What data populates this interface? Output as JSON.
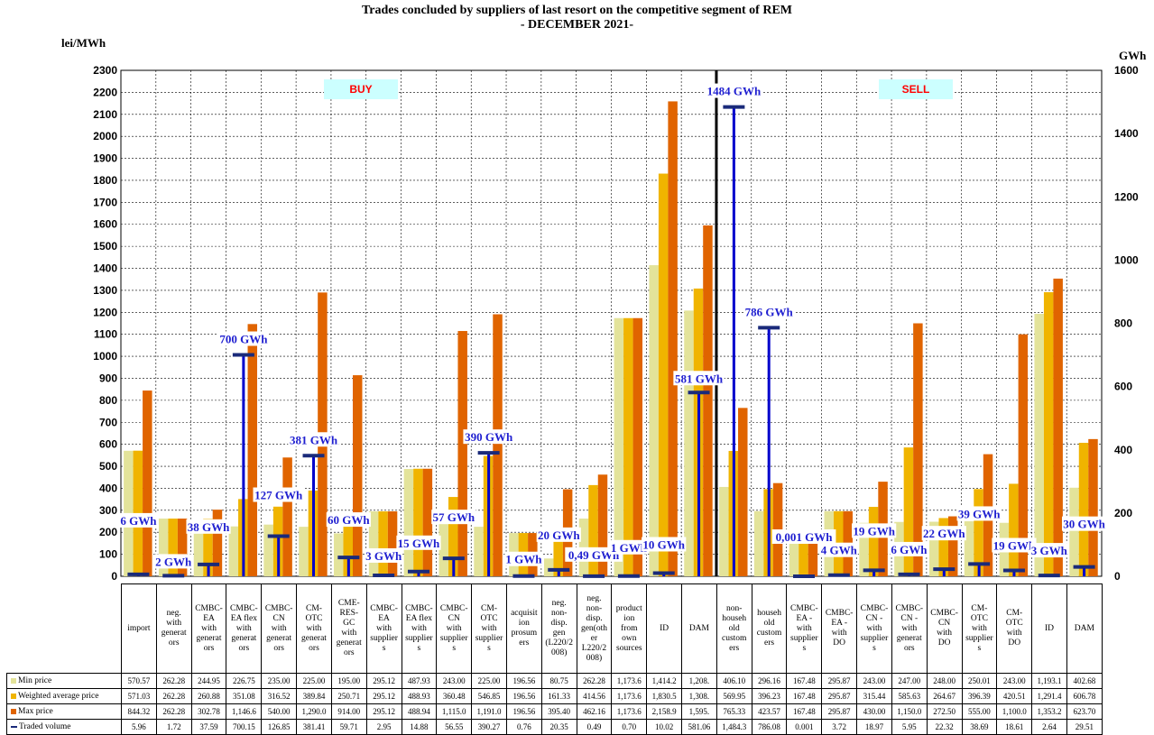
{
  "title_line1": "Trades concluded by suppliers of last resort on the competitive segment of REM",
  "title_line2": "- DECEMBER 2021-",
  "chart_data": {
    "type": "bar",
    "left_unit": "lei/MWh",
    "right_unit": "GWh",
    "ylim": [
      0,
      2300
    ],
    "y2lim": [
      0,
      1600
    ],
    "y_ticks": [
      "0",
      "100",
      "200",
      "300",
      "400",
      "500",
      "600",
      "700",
      "800",
      "900",
      "1000",
      "1100",
      "1200",
      "1300",
      "1400",
      "1500",
      "1600",
      "1700",
      "1800",
      "1900",
      "2000",
      "2100",
      "2200",
      "2300"
    ],
    "y2_ticks": [
      "0",
      "200",
      "400",
      "600",
      "800",
      "1000",
      "1200",
      "1400",
      "1600"
    ],
    "grid": true,
    "buy_label": "BUY",
    "sell_label": "SELL",
    "categories": [
      "import",
      "neg. with generators",
      "CMBC-EA with generators",
      "CMBC-EA flex with generators",
      "CMBC-CN with generators",
      "CM-OTC with generators",
      "CME-RES-GC with generators",
      "CMBC-EA with suppliers",
      "CMBC-EA flex with suppliers",
      "CMBC-CN with suppliers",
      "CM-OTC with suppliers",
      "acquisition prosumers",
      "neg. non-disp. gen (L220/2008)",
      "neg. non-disp. gen(other L220/2008)",
      "production from own sources",
      "ID",
      "DAM",
      "non-household customers",
      "household customers",
      "CMBC-EA - with suppliers",
      "CMBC-EA - with DO",
      "CMBC-CN - with suppliers",
      "CMBC-CN - with generators",
      "CMBC-CN with DO",
      "CM-OTC with suppliers",
      "CM-OTC with DO",
      "ID",
      "DAM"
    ],
    "category_labels": [
      "import",
      "neg.\nwith\ngenerat\nors",
      "CMBC-\nEA\nwith\ngenerat\nors",
      "CMBC-\nEA flex\nwith\ngenerat\nors",
      "CMBC-\nCN\nwith\ngenerat\nors",
      "CM-\nOTC\nwith\ngenerat\nors",
      "CME-\nRES-\nGC\nwith\ngenerat\nors",
      "CMBC-\nEA\nwith\nsupplier\ns",
      "CMBC-\nEA flex\nwith\nsupplier\ns",
      "CMBC-\nCN\nwith\nsupplier\ns",
      "CM-\nOTC\nwith\nsupplier\ns",
      "acquisit\nion\nprosum\ners",
      "neg.\nnon-\ndisp.\ngen\n(L220/2\n008)",
      "neg.\nnon-\ndisp.\ngen(oth\ner\nL220/2\n008)",
      "product\nion\nfrom\nown\nsources",
      "ID",
      "DAM",
      "non-\nhouseh\nold\ncustom\ners",
      "househ\nold\ncustom\ners",
      "CMBC-\nEA -\nwith\nsupplier\ns",
      "CMBC-\nEA -\nwith\nDO",
      "CMBC-\nCN -\nwith\nsupplier\ns",
      "CMBC-\nCN -\nwith\ngenerat\nors",
      "CMBC-\nCN\nwith\nDO",
      "CM-\nOTC\nwith\nsupplier\ns",
      "CM-\nOTC\nwith\nDO",
      "ID",
      "DAM"
    ],
    "series": [
      {
        "name": "Min price",
        "color": "#e3e39a",
        "values": [
          570.57,
          262.28,
          244.95,
          226.75,
          235.0,
          225.0,
          195.0,
          295.12,
          487.93,
          243.0,
          225.0,
          196.56,
          80.75,
          262.28,
          1173.6,
          1414.2,
          1208.0,
          406.1,
          296.16,
          167.48,
          295.87,
          243.0,
          247.0,
          248.0,
          250.01,
          243.0,
          1193.1,
          402.68
        ]
      },
      {
        "name": "Weighted average price",
        "color": "#f0b400",
        "values": [
          571.03,
          262.28,
          260.88,
          351.08,
          316.52,
          389.84,
          250.71,
          295.12,
          488.93,
          360.48,
          546.85,
          196.56,
          161.33,
          414.56,
          1173.6,
          1830.5,
          1308.0,
          569.95,
          396.23,
          167.48,
          295.87,
          315.44,
          585.63,
          264.67,
          396.39,
          420.51,
          1291.4,
          606.78
        ]
      },
      {
        "name": "Max price",
        "color": "#e06400",
        "values": [
          844.32,
          262.28,
          302.78,
          1146.6,
          540.0,
          1290.0,
          914.0,
          295.12,
          488.94,
          1115.0,
          1191.0,
          196.56,
          395.4,
          462.16,
          1173.6,
          2158.9,
          1595.0,
          765.33,
          423.57,
          167.48,
          295.87,
          430.0,
          1150.0,
          272.5,
          555.0,
          1100.0,
          1353.2,
          623.7
        ]
      },
      {
        "name": "Traded volume",
        "color": "#0000cc",
        "values": [
          5.96,
          1.72,
          37.59,
          700.15,
          126.85,
          381.41,
          59.71,
          2.95,
          14.88,
          56.55,
          390.27,
          0.76,
          20.35,
          0.49,
          0.7,
          10.02,
          581.06,
          1484.3,
          786.08,
          0.001,
          3.72,
          18.97,
          5.95,
          22.32,
          38.69,
          18.61,
          2.64,
          29.51
        ]
      }
    ],
    "volume_labels": [
      "6 GWh",
      "2 GWh",
      "38 GWh",
      "700 GWh",
      "127 GWh",
      "381 GWh",
      "60 GWh",
      "3 GWh",
      "15 GWh",
      "57 GWh",
      "390 GWh",
      "1 GWh",
      "20 GWh",
      "0,49 GWh",
      "1 GWh",
      "10 GWh",
      "581 GWh",
      "1484 GWh",
      "786 GWh",
      "0,001 GWh",
      "4 GWh",
      "19 GWh",
      "6 GWh",
      "22 GWh",
      "39 GWh",
      "19 GWh",
      "3 GWh",
      "30 GWh"
    ],
    "table_rows": [
      {
        "label": "Min price",
        "cells": [
          "570.57",
          "262.28",
          "244.95",
          "226.75",
          "235.00",
          "225.00",
          "195.00",
          "295.12",
          "487.93",
          "243.00",
          "225.00",
          "196.56",
          "80.75",
          "262.28",
          "1,173.6",
          "1,414.2",
          "1,208.",
          "406.10",
          "296.16",
          "167.48",
          "295.87",
          "243.00",
          "247.00",
          "248.00",
          "250.01",
          "243.00",
          "1,193.1",
          "402.68"
        ]
      },
      {
        "label": "Weighted average price",
        "cells": [
          "571.03",
          "262.28",
          "260.88",
          "351.08",
          "316.52",
          "389.84",
          "250.71",
          "295.12",
          "488.93",
          "360.48",
          "546.85",
          "196.56",
          "161.33",
          "414.56",
          "1,173.6",
          "1,830.5",
          "1,308.",
          "569.95",
          "396.23",
          "167.48",
          "295.87",
          "315.44",
          "585.63",
          "264.67",
          "396.39",
          "420.51",
          "1,291.4",
          "606.78"
        ]
      },
      {
        "label": "Max price",
        "cells": [
          "844.32",
          "262.28",
          "302.78",
          "1,146.6",
          "540.00",
          "1,290.0",
          "914.00",
          "295.12",
          "488.94",
          "1,115.0",
          "1,191.0",
          "196.56",
          "395.40",
          "462.16",
          "1,173.6",
          "2,158.9",
          "1,595.",
          "765.33",
          "423.57",
          "167.48",
          "295.87",
          "430.00",
          "1,150.0",
          "272.50",
          "555.00",
          "1,100.0",
          "1,353.2",
          "623.70"
        ]
      },
      {
        "label": "Traded volume",
        "cells": [
          "5.96",
          "1.72",
          "37.59",
          "700.15",
          "126.85",
          "381.41",
          "59.71",
          "2.95",
          "14.88",
          "56.55",
          "390.27",
          "0.76",
          "20.35",
          "0.49",
          "0.70",
          "10.02",
          "581.06",
          "1,484.3",
          "786.08",
          "0.001",
          "3.72",
          "18.97",
          "5.95",
          "22.32",
          "38.69",
          "18.61",
          "2.64",
          "29.51"
        ]
      }
    ]
  }
}
